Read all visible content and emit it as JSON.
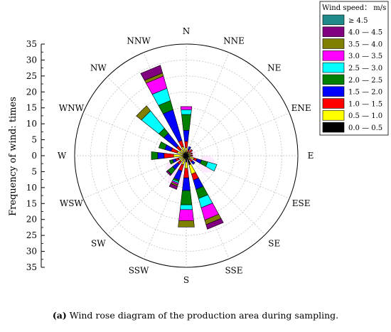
{
  "chart_data": {
    "type": "wind-rose",
    "ylabel": "Frequency of wind: times",
    "r_ticks": [
      0,
      5,
      10,
      15,
      20,
      25,
      30,
      35
    ],
    "r_max": 35,
    "directions": [
      "N",
      "NNE",
      "NE",
      "ENE",
      "E",
      "ESE",
      "SE",
      "SSE",
      "S",
      "SSW",
      "SW",
      "WSW",
      "W",
      "WNW",
      "NW",
      "NNW"
    ],
    "legend_title": "Wind speed： m/s",
    "bins": [
      {
        "label": "≥ 4.5",
        "color": "#1f8a8a"
      },
      {
        "label": "4.0 — 4.5",
        "color": "#800080"
      },
      {
        "label": "3.5 — 4.0",
        "color": "#808000"
      },
      {
        "label": "3.0 — 3.5",
        "color": "#ff00ff"
      },
      {
        "label": "2.5 — 3.0",
        "color": "#00ffff"
      },
      {
        "label": "2.0 — 2.5",
        "color": "#008000"
      },
      {
        "label": "1.5 — 2.0",
        "color": "#0000ff"
      },
      {
        "label": "1.0 — 1.5",
        "color": "#ff0000"
      },
      {
        "label": "0.5 — 1.0",
        "color": "#ffff00"
      },
      {
        "label": "0.0 — 0.5",
        "color": "#000000"
      }
    ],
    "series": [
      {
        "direction": "N",
        "values": [
          0,
          0,
          0,
          1,
          1.5,
          5,
          3.5,
          2,
          1.5,
          1
        ]
      },
      {
        "direction": "NNE",
        "values": [
          0,
          0,
          0,
          0,
          0,
          0,
          1,
          1,
          0.5,
          0.5
        ]
      },
      {
        "direction": "NE",
        "values": [
          0,
          0,
          0,
          0,
          0,
          0,
          0,
          1,
          1,
          0.5
        ]
      },
      {
        "direction": "ENE",
        "values": [
          0,
          0,
          0,
          0,
          0,
          0,
          0,
          0.5,
          1,
          0.5
        ]
      },
      {
        "direction": "E",
        "values": [
          0,
          0,
          0,
          0,
          0,
          0,
          0,
          0.5,
          1,
          0.5
        ]
      },
      {
        "direction": "ESE",
        "values": [
          0,
          0,
          0,
          0,
          3,
          2,
          1.5,
          1,
          1.5,
          1
        ]
      },
      {
        "direction": "SE",
        "values": [
          0,
          0,
          0,
          0,
          0,
          0,
          1,
          1,
          1,
          0.5
        ]
      },
      {
        "direction": "SSE",
        "values": [
          0,
          1.5,
          1.5,
          4,
          3,
          3,
          3,
          2,
          3,
          3
        ]
      },
      {
        "direction": "S",
        "values": [
          0,
          0,
          2,
          3.5,
          1.5,
          4.5,
          4,
          3,
          2,
          2
        ]
      },
      {
        "direction": "SSW",
        "values": [
          0,
          1,
          0.5,
          0.5,
          0.5,
          0.5,
          3,
          2,
          2,
          1
        ]
      },
      {
        "direction": "SW",
        "values": [
          0,
          0.5,
          0,
          0,
          0,
          2,
          2,
          1,
          1.5,
          1
        ]
      },
      {
        "direction": "WSW",
        "values": [
          0,
          0,
          0,
          0,
          0,
          1,
          1,
          1,
          1.5,
          1
        ]
      },
      {
        "direction": "W",
        "values": [
          0,
          0,
          0,
          0,
          0,
          2,
          2,
          3,
          3,
          1
        ]
      },
      {
        "direction": "WNW",
        "values": [
          0,
          0,
          0,
          0,
          0,
          2,
          2,
          2,
          2,
          1
        ]
      },
      {
        "direction": "NW",
        "values": [
          0,
          0,
          2,
          0,
          7,
          2,
          5,
          1.5,
          1.5,
          1
        ]
      },
      {
        "direction": "NNW",
        "values": [
          0,
          2.5,
          1,
          4,
          4,
          3,
          10,
          2,
          2,
          1
        ]
      }
    ]
  },
  "caption": {
    "prefix": "(a)",
    "text": " Wind rose diagram of the production area during sampling."
  }
}
